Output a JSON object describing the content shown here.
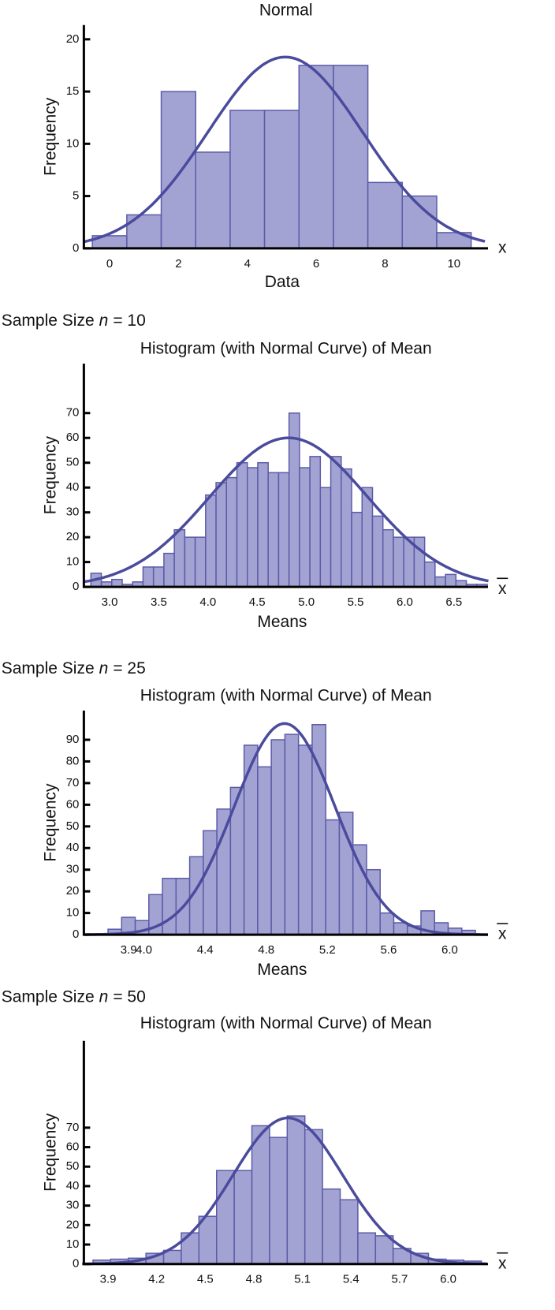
{
  "colors": {
    "bar_fill": "#a3a3d3",
    "bar_stroke": "#5b5ba8",
    "curve": "#4b4b9e",
    "axis": "#000000"
  },
  "chart_data": [
    {
      "type": "bar",
      "title": "Normal",
      "xlabel": "Data",
      "ylabel": "Frequency",
      "variable_label": "x",
      "variable_overbar": false,
      "x_ticks": [
        0,
        2,
        4,
        6,
        8,
        10
      ],
      "x_tick_labels": [
        "0",
        "2",
        "4",
        "6",
        "8",
        "10"
      ],
      "y_ticks": [
        0,
        5,
        10,
        15,
        20
      ],
      "y_tick_labels": [
        "0",
        "5",
        "10",
        "15",
        "20"
      ],
      "xlim": [
        -0.75,
        10.9
      ],
      "ylim": [
        0,
        21.5
      ],
      "bin_start": -0.5,
      "bin_width": 1,
      "values": [
        1.2,
        3.2,
        15,
        9.2,
        13.2,
        13.2,
        17.5,
        17.5,
        6.3,
        5,
        1.5
      ],
      "normal_curve": {
        "mean": 5.1,
        "sd": 2.25,
        "peak": 18.3
      },
      "grid": false
    },
    {
      "type": "bar",
      "sample_label": {
        "prefix": "Sample Size",
        "var": "n",
        "value": "= 10"
      },
      "title": "Histogram (with Normal Curve) of Mean",
      "xlabel": "Means",
      "ylabel": "Frequency",
      "variable_label": "x",
      "variable_overbar": true,
      "x_ticks": [
        3.0,
        3.5,
        4.0,
        4.5,
        5.0,
        5.5,
        6.0,
        6.5
      ],
      "x_tick_labels": [
        "3.0",
        "3.5",
        "4.0",
        "4.5",
        "5.0",
        "5.5",
        "6.0",
        "6.5"
      ],
      "y_ticks": [
        0,
        10,
        20,
        30,
        40,
        50,
        60,
        70
      ],
      "y_tick_labels": [
        "0",
        "10",
        "20",
        "30",
        "40",
        "50",
        "60",
        "70"
      ],
      "xlim": [
        2.74,
        6.85
      ],
      "ylim": [
        0,
        90
      ],
      "bin_start": 2.81,
      "bin_width": 0.106,
      "values": [
        5.5,
        2,
        3,
        1,
        2,
        8,
        8,
        13.5,
        23,
        20,
        20,
        37,
        42,
        44,
        50,
        48,
        50,
        46,
        46,
        70,
        48,
        52.5,
        40,
        52.5,
        47.5,
        30,
        40,
        28.5,
        23,
        20,
        20,
        20,
        10,
        4,
        5,
        2.5,
        1,
        1
      ],
      "normal_curve": {
        "mean": 4.82,
        "sd": 0.8,
        "peak": 60
      },
      "grid": false
    },
    {
      "type": "bar",
      "sample_label": {
        "prefix": "Sample Size",
        "var": "n",
        "value": "= 25"
      },
      "title": "Histogram (with Normal Curve) of Mean",
      "xlabel": "Means",
      "ylabel": "Frequency",
      "variable_label": "x",
      "variable_overbar": true,
      "x_ticks": [
        3.9,
        4.0,
        4.4,
        4.8,
        5.2,
        5.6,
        6.0
      ],
      "x_tick_labels": [
        "3.9",
        "4.0",
        "4.4",
        "4.8",
        "5.2",
        "5.6",
        "6.0"
      ],
      "y_ticks": [
        0,
        10,
        20,
        30,
        40,
        50,
        60,
        70,
        80,
        90
      ],
      "y_tick_labels": [
        "0",
        "10",
        "20",
        "30",
        "40",
        "50",
        "60",
        "70",
        "80",
        "90"
      ],
      "xlim": [
        3.61,
        6.25
      ],
      "ylim": [
        0,
        103
      ],
      "bin_start": 3.765,
      "bin_width": 0.089,
      "values": [
        2.5,
        8,
        6.5,
        18.5,
        26,
        26,
        36,
        48,
        58,
        68,
        87.5,
        77.5,
        90,
        92.5,
        87.5,
        97,
        53,
        56.5,
        41.5,
        30,
        10,
        5.5,
        4,
        11,
        5.5,
        3,
        2
      ],
      "normal_curve": {
        "mean": 4.92,
        "sd": 0.33,
        "peak": 97.5
      },
      "grid": false
    },
    {
      "type": "bar",
      "sample_label": {
        "prefix": "Sample Size",
        "var": "n",
        "value": "= 50"
      },
      "title": "Histogram (with Normal Curve) of Mean",
      "xlabel": "Means",
      "ylabel": "Frequency",
      "variable_label": "x",
      "variable_overbar": true,
      "x_ticks": [
        3.9,
        4.2,
        4.5,
        4.8,
        5.1,
        5.4,
        5.7,
        6.0
      ],
      "x_tick_labels": [
        "3.9",
        "4.2",
        "4.5",
        "4.8",
        "5.1",
        "5.4",
        "5.7",
        "6.0"
      ],
      "y_ticks": [
        0,
        10,
        20,
        30,
        40,
        50,
        60,
        70
      ],
      "y_tick_labels": [
        "0",
        "10",
        "20",
        "30",
        "40",
        "50",
        "60",
        "70"
      ],
      "xlim": [
        3.74,
        6.24
      ],
      "ylim": [
        0,
        115
      ],
      "bin_start": 3.807,
      "bin_width": 0.109,
      "values": [
        2,
        2.5,
        3,
        5.5,
        7,
        16,
        24.5,
        48,
        48,
        71,
        65,
        76,
        69,
        38.5,
        33,
        16,
        14.5,
        8,
        5.5,
        2.5,
        2,
        1.5
      ],
      "normal_curve": {
        "mean": 5.01,
        "sd": 0.34,
        "peak": 75
      },
      "grid": false
    }
  ]
}
